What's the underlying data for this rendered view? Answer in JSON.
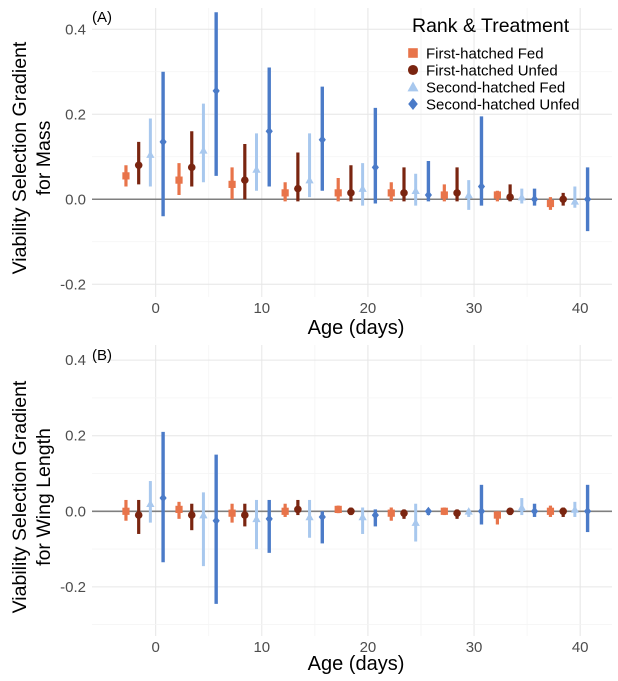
{
  "colors": {
    "ff": "#E8744A",
    "fu": "#7A2510",
    "sf": "#A8C8EE",
    "su": "#4B7BC8",
    "zero_line": "#7f7f7f",
    "grid_major": "#e6e6e6",
    "grid_minor": "#f4f4f4"
  },
  "legend": {
    "title": "Rank & Treatment",
    "items": [
      {
        "key": "ff",
        "label": "First-hatched Fed",
        "shape": "square"
      },
      {
        "key": "fu",
        "label": "First-hatched Unfed",
        "shape": "circle"
      },
      {
        "key": "sf",
        "label": "Second-hatched Fed",
        "shape": "triangle"
      },
      {
        "key": "su",
        "label": "Second-hatched Unfed",
        "shape": "diamond"
      }
    ]
  },
  "chart_data": [
    {
      "type": "scatter",
      "panel_label": "(A)",
      "xlabel": "Age (days)",
      "ylabel": [
        "Viability Selection Gradient",
        "for Mass"
      ],
      "xlim": [
        -6,
        43
      ],
      "ylim": [
        -0.23,
        0.45
      ],
      "xticks": [
        0,
        10,
        20,
        30,
        40
      ],
      "yticks": [
        -0.2,
        0.0,
        0.2,
        0.4
      ],
      "ytick_labels": [
        "-0.2",
        "0.0",
        "0.2",
        "0.4"
      ],
      "categories": [
        0,
        5,
        10,
        15,
        20,
        25,
        30,
        35,
        40
      ],
      "series": [
        {
          "name": "First-hatched Fed",
          "key": "ff",
          "estimate": [
            0.055,
            0.045,
            0.035,
            0.015,
            0.015,
            0.015,
            0.01,
            0.01,
            -0.01
          ],
          "lower": [
            0.03,
            0.01,
            0.0,
            -0.005,
            -0.005,
            -0.005,
            -0.005,
            -0.005,
            -0.025
          ],
          "upper": [
            0.08,
            0.085,
            0.075,
            0.04,
            0.05,
            0.04,
            0.035,
            0.02,
            0.005
          ]
        },
        {
          "name": "First-hatched Unfed",
          "key": "fu",
          "estimate": [
            0.08,
            0.075,
            0.045,
            0.025,
            0.015,
            0.015,
            0.015,
            0.005,
            0.0
          ],
          "lower": [
            0.035,
            0.03,
            0.0,
            -0.005,
            -0.005,
            -0.005,
            -0.005,
            -0.005,
            -0.015
          ],
          "upper": [
            0.135,
            0.16,
            0.13,
            0.11,
            0.08,
            0.075,
            0.075,
            0.035,
            0.015
          ]
        },
        {
          "name": "Second-hatched Fed",
          "key": "sf",
          "estimate": [
            0.105,
            0.115,
            0.07,
            0.045,
            0.025,
            0.02,
            0.01,
            0.005,
            -0.005
          ],
          "lower": [
            0.03,
            0.04,
            0.02,
            0.005,
            -0.015,
            -0.015,
            -0.025,
            -0.01,
            -0.02
          ],
          "upper": [
            0.19,
            0.225,
            0.155,
            0.155,
            0.085,
            0.06,
            0.045,
            0.025,
            0.03
          ]
        },
        {
          "name": "Second-hatched Unfed",
          "key": "su",
          "estimate": [
            0.135,
            0.255,
            0.16,
            0.14,
            0.075,
            0.01,
            0.03,
            0.0,
            0.0
          ],
          "lower": [
            -0.04,
            0.055,
            0.03,
            0.02,
            -0.01,
            -0.005,
            -0.015,
            -0.015,
            -0.075
          ],
          "upper": [
            0.3,
            0.44,
            0.31,
            0.265,
            0.215,
            0.09,
            0.195,
            0.025,
            0.075
          ]
        }
      ]
    },
    {
      "type": "scatter",
      "panel_label": "(B)",
      "xlabel": "Age (days)",
      "ylabel": [
        "Viability Selection Gradient",
        "for Wing Length"
      ],
      "xlim": [
        -6,
        43
      ],
      "ylim": [
        -0.33,
        0.44
      ],
      "xticks": [
        0,
        10,
        20,
        30,
        40
      ],
      "yticks": [
        -0.2,
        0.0,
        0.2,
        0.4
      ],
      "ytick_labels": [
        "-0.2",
        "0.0",
        "0.2",
        "0.4"
      ],
      "categories": [
        0,
        5,
        10,
        15,
        20,
        25,
        30,
        35,
        40
      ],
      "series": [
        {
          "name": "First-hatched Fed",
          "key": "ff",
          "estimate": [
            0.0,
            0.005,
            -0.005,
            0.0,
            0.005,
            -0.005,
            0.0,
            -0.01,
            0.0
          ],
          "lower": [
            -0.025,
            -0.02,
            -0.03,
            -0.015,
            -0.005,
            -0.025,
            -0.01,
            -0.035,
            -0.015
          ],
          "upper": [
            0.03,
            0.025,
            0.02,
            0.02,
            0.015,
            0.01,
            0.01,
            0.0,
            0.015
          ]
        },
        {
          "name": "First-hatched Unfed",
          "key": "fu",
          "estimate": [
            -0.01,
            -0.01,
            -0.01,
            0.005,
            0.0,
            -0.005,
            -0.005,
            0.0,
            0.0
          ],
          "lower": [
            -0.06,
            -0.05,
            -0.04,
            -0.01,
            -0.01,
            -0.02,
            -0.02,
            -0.01,
            -0.015
          ],
          "upper": [
            0.03,
            0.02,
            0.02,
            0.03,
            0.01,
            0.005,
            0.005,
            0.005,
            0.01
          ]
        },
        {
          "name": "Second-hatched Fed",
          "key": "sf",
          "estimate": [
            0.02,
            -0.01,
            -0.02,
            -0.015,
            -0.015,
            -0.03,
            0.0,
            0.01,
            0.005
          ],
          "lower": [
            -0.03,
            -0.145,
            -0.1,
            -0.07,
            -0.06,
            -0.08,
            -0.015,
            -0.01,
            -0.015
          ],
          "upper": [
            0.08,
            0.05,
            0.03,
            0.03,
            0.01,
            0.02,
            0.005,
            0.035,
            0.025
          ]
        },
        {
          "name": "Second-hatched Unfed",
          "key": "su",
          "estimate": [
            0.035,
            -0.025,
            -0.02,
            -0.015,
            -0.01,
            0.0,
            0.0,
            0.0,
            0.0
          ],
          "lower": [
            -0.135,
            -0.245,
            -0.11,
            -0.085,
            -0.04,
            -0.01,
            -0.035,
            -0.015,
            -0.055
          ],
          "upper": [
            0.21,
            0.15,
            0.03,
            0.0,
            0.005,
            0.005,
            0.07,
            0.02,
            0.07
          ]
        }
      ]
    }
  ]
}
